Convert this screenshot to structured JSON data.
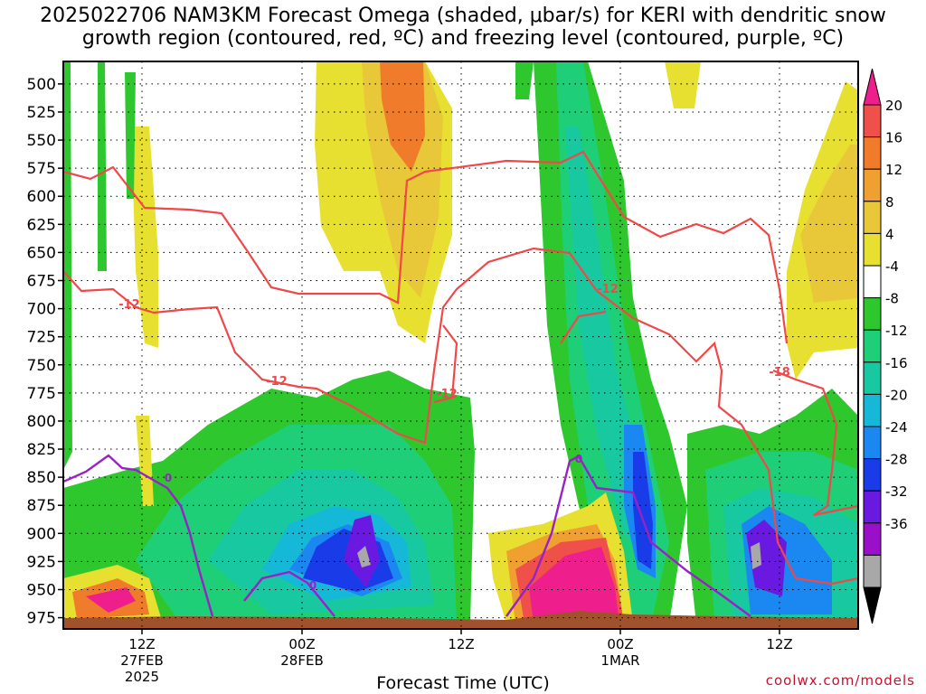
{
  "title_line1": "2025022706 NAM3KM Forecast Omega (shaded, μbar/s) for KERI with dendritic snow",
  "title_line2": "growth region (contoured, red, ºC) and freezing level (contoured, purple, ºC)",
  "watermark": "coolwx.com/models",
  "colors": {
    "frame": "#000000",
    "dendritic_contour": "#f04848",
    "freezing_contour": "#9a20c8",
    "ground": "#a0522d"
  },
  "chart_data": {
    "type": "heatmap",
    "xlabel": "Forecast Time (UTC)",
    "ylabel": "",
    "x_ticks": [
      {
        "label": "12Z",
        "sub": [
          "27FEB",
          "2025"
        ]
      },
      {
        "label": "00Z",
        "sub": [
          "28FEB"
        ]
      },
      {
        "label": "12Z",
        "sub": []
      },
      {
        "label": "00Z",
        "sub": [
          "1MAR"
        ]
      },
      {
        "label": "12Z",
        "sub": []
      }
    ],
    "y_ticks": [
      "500",
      "525",
      "550",
      "575",
      "600",
      "625",
      "650",
      "675",
      "700",
      "725",
      "750",
      "775",
      "800",
      "825",
      "850",
      "875",
      "900",
      "925",
      "950",
      "975"
    ],
    "ylim": [
      480,
      985
    ],
    "grid": "dotted",
    "colorbar": {
      "labels": [
        "20",
        "16",
        "12",
        "8",
        "4",
        "-4",
        "-8",
        "-12",
        "-16",
        "-20",
        "-24",
        "-28",
        "-32",
        "-36"
      ],
      "bins": [
        {
          "color": "#ee1f8c"
        },
        {
          "color": "#f0504a"
        },
        {
          "color": "#f07b2a"
        },
        {
          "color": "#f0a030"
        },
        {
          "color": "#e8c838"
        },
        {
          "color": "#e8e030"
        },
        {
          "color": "#ffffff"
        },
        {
          "color": "#2ec82e"
        },
        {
          "color": "#1ecf78"
        },
        {
          "color": "#18c8a0"
        },
        {
          "color": "#16b8d8"
        },
        {
          "color": "#1a88f0"
        },
        {
          "color": "#1a3ce8"
        },
        {
          "color": "#6a1ae0"
        },
        {
          "color": "#9a10c8"
        },
        {
          "color": "#a8a8a8"
        },
        {
          "color": "#000000"
        }
      ]
    },
    "contour_labels": {
      "dendritic": [
        "-12",
        "-12",
        "-12",
        "-12",
        "-18"
      ],
      "freezing": [
        "0",
        "0",
        "0"
      ]
    }
  }
}
